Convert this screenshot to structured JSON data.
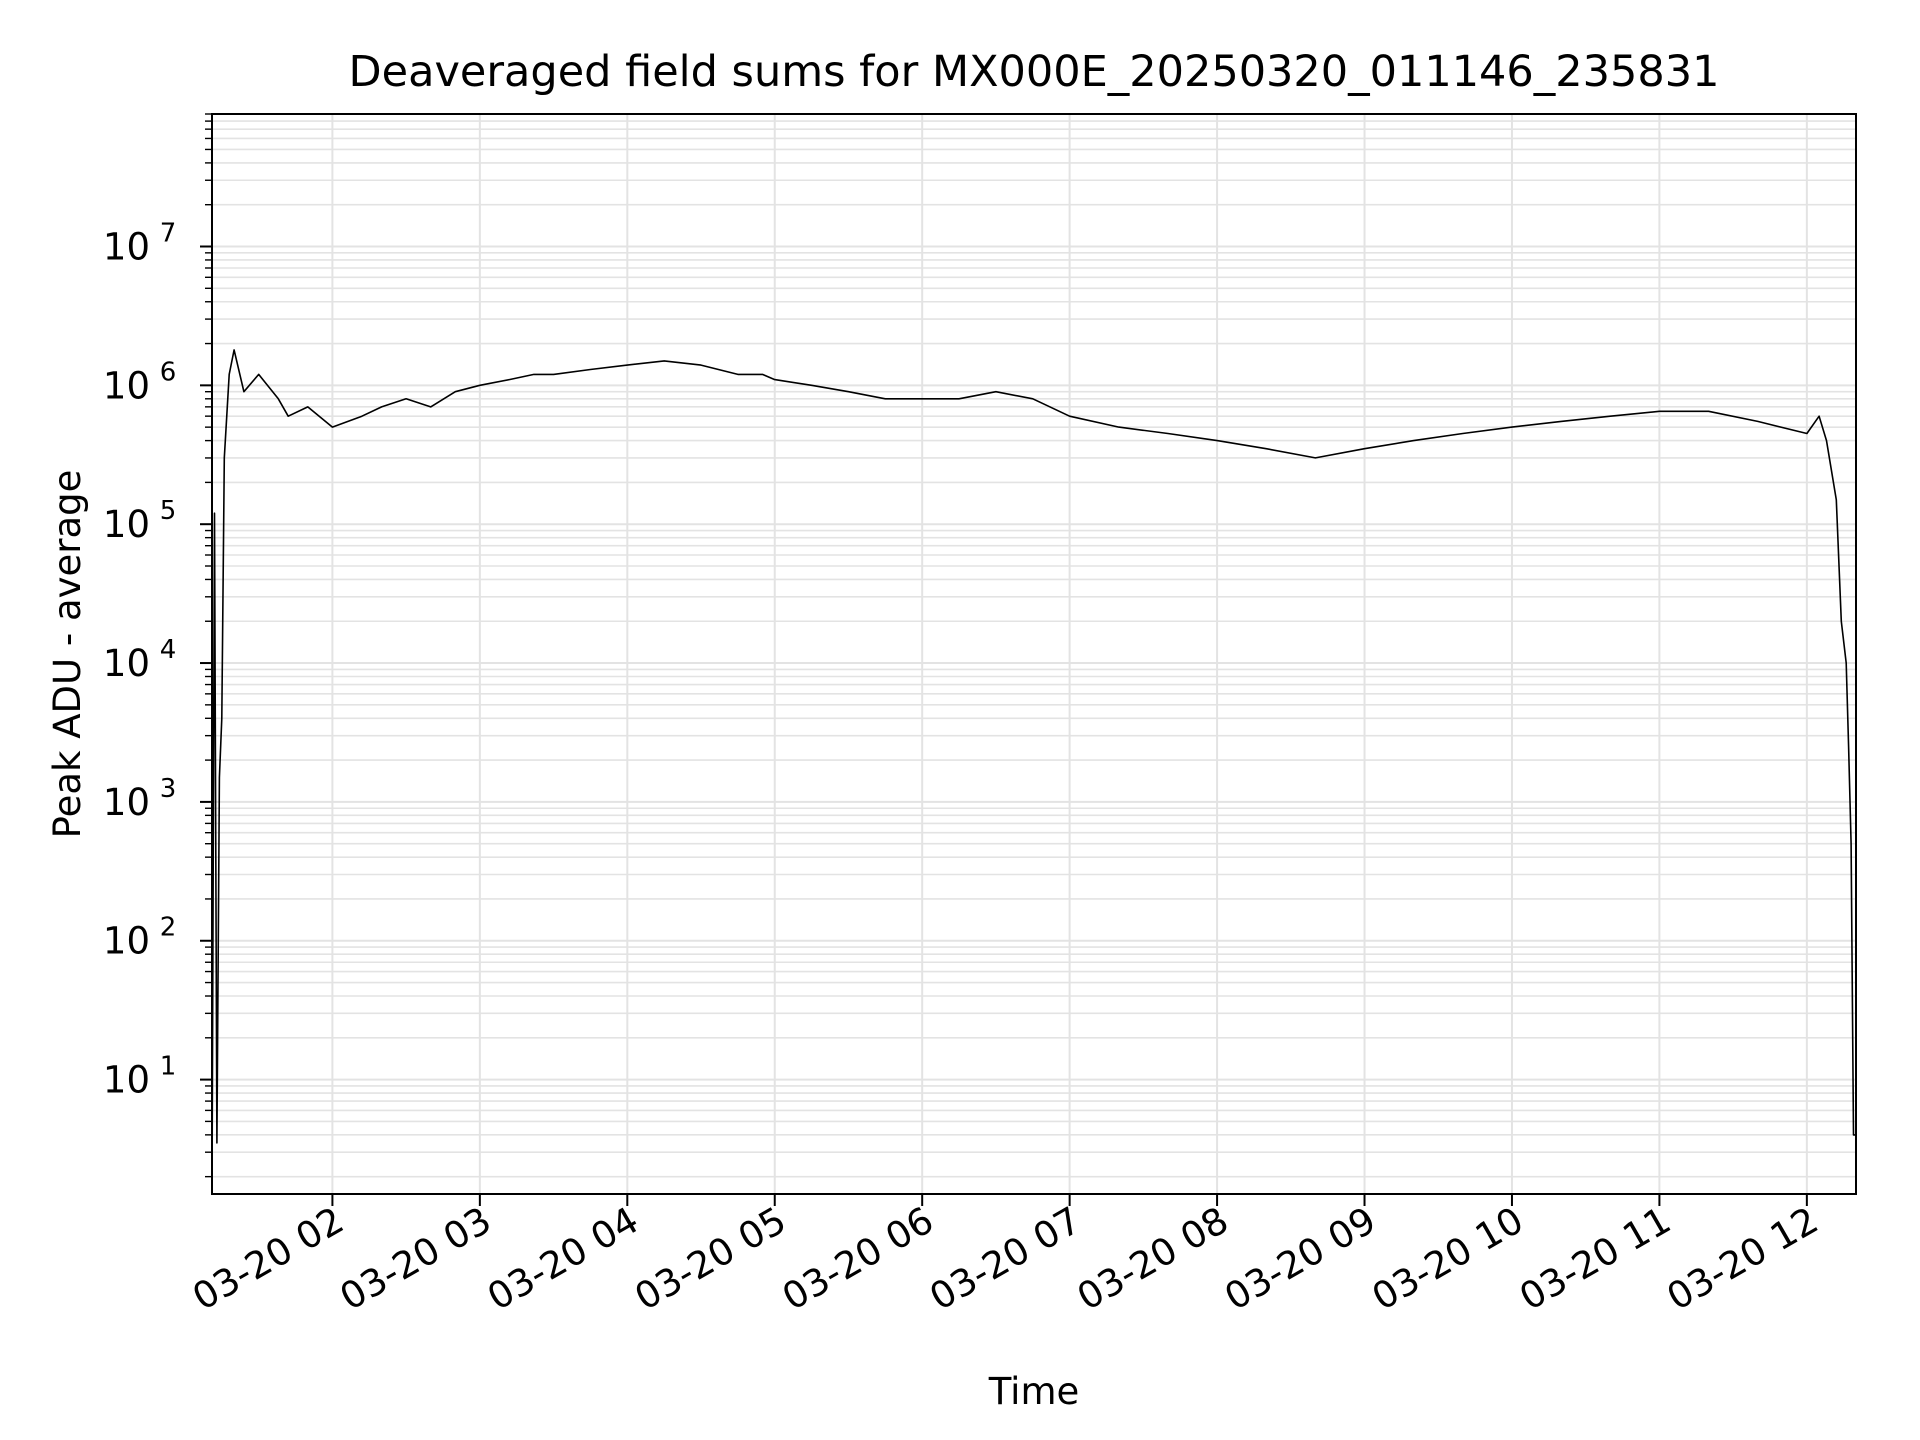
{
  "chart_data": {
    "type": "line",
    "title": "Deaveraged field sums for MX000E_20250320_011146_235831",
    "xlabel": "Time",
    "ylabel": "Peak ADU - average",
    "y_scale": "log",
    "ylim": [
      1.5,
      90000000
    ],
    "xlim": [
      "2025-03-20 01:11",
      "2025-03-20 12:20"
    ],
    "grid": true,
    "line_color": "#000000",
    "x_ticks": [
      {
        "t": "2025-03-20 02:00",
        "label": "03-20 02"
      },
      {
        "t": "2025-03-20 03:00",
        "label": "03-20 03"
      },
      {
        "t": "2025-03-20 04:00",
        "label": "03-20 04"
      },
      {
        "t": "2025-03-20 05:00",
        "label": "03-20 05"
      },
      {
        "t": "2025-03-20 06:00",
        "label": "03-20 06"
      },
      {
        "t": "2025-03-20 07:00",
        "label": "03-20 07"
      },
      {
        "t": "2025-03-20 08:00",
        "label": "03-20 08"
      },
      {
        "t": "2025-03-20 09:00",
        "label": "03-20 09"
      },
      {
        "t": "2025-03-20 10:00",
        "label": "03-20 10"
      },
      {
        "t": "2025-03-20 11:00",
        "label": "03-20 11"
      },
      {
        "t": "2025-03-20 12:00",
        "label": "03-20 12"
      }
    ],
    "y_ticks": [
      {
        "value": 10,
        "base": "10",
        "exp": "1"
      },
      {
        "value": 100,
        "base": "10",
        "exp": "2"
      },
      {
        "value": 1000,
        "base": "10",
        "exp": "3"
      },
      {
        "value": 10000,
        "base": "10",
        "exp": "4"
      },
      {
        "value": 100000,
        "base": "10",
        "exp": "5"
      },
      {
        "value": 1000000,
        "base": "10",
        "exp": "6"
      },
      {
        "value": 10000000,
        "base": "10",
        "exp": "7"
      }
    ],
    "series": [
      {
        "x": [
          "2025-03-20 01:11",
          "2025-03-20 01:12",
          "2025-03-20 01:13",
          "2025-03-20 01:14",
          "2025-03-20 01:15",
          "2025-03-20 01:16",
          "2025-03-20 01:18",
          "2025-03-20 01:20",
          "2025-03-20 01:24",
          "2025-03-20 01:30",
          "2025-03-20 01:38",
          "2025-03-20 01:42",
          "2025-03-20 01:50",
          "2025-03-20 02:00",
          "2025-03-20 02:12",
          "2025-03-20 02:20",
          "2025-03-20 02:30",
          "2025-03-20 02:40",
          "2025-03-20 02:50",
          "2025-03-20 03:00",
          "2025-03-20 03:12",
          "2025-03-20 03:22",
          "2025-03-20 03:30",
          "2025-03-20 03:45",
          "2025-03-20 04:00",
          "2025-03-20 04:15",
          "2025-03-20 04:30",
          "2025-03-20 04:45",
          "2025-03-20 04:55",
          "2025-03-20 05:00",
          "2025-03-20 05:15",
          "2025-03-20 05:30",
          "2025-03-20 05:45",
          "2025-03-20 06:00",
          "2025-03-20 06:15",
          "2025-03-20 06:30",
          "2025-03-20 06:45",
          "2025-03-20 07:00",
          "2025-03-20 07:20",
          "2025-03-20 07:40",
          "2025-03-20 08:00",
          "2025-03-20 08:20",
          "2025-03-20 08:40",
          "2025-03-20 09:00",
          "2025-03-20 09:20",
          "2025-03-20 09:40",
          "2025-03-20 10:00",
          "2025-03-20 10:20",
          "2025-03-20 10:40",
          "2025-03-20 11:00",
          "2025-03-20 11:20",
          "2025-03-20 11:40",
          "2025-03-20 12:00",
          "2025-03-20 12:05",
          "2025-03-20 12:08",
          "2025-03-20 12:12",
          "2025-03-20 12:14",
          "2025-03-20 12:16",
          "2025-03-20 12:17",
          "2025-03-20 12:18",
          "2025-03-20 12:19",
          "2025-03-20 12:20"
        ],
        "y": [
          1.5,
          120000,
          3.5,
          1500,
          4000,
          300000,
          1200000,
          1800000,
          900000,
          1200000,
          800000,
          600000,
          700000,
          500000,
          600000,
          700000,
          800000,
          700000,
          900000,
          1000000,
          1100000,
          1200000,
          1200000,
          1300000,
          1400000,
          1500000,
          1400000,
          1200000,
          1200000,
          1100000,
          1000000,
          900000,
          800000,
          800000,
          800000,
          900000,
          800000,
          600000,
          500000,
          450000,
          400000,
          350000,
          300000,
          350000,
          400000,
          450000,
          500000,
          550000,
          600000,
          650000,
          650000,
          550000,
          450000,
          600000,
          400000,
          150000,
          20000,
          10000,
          2500,
          500,
          4,
          4
        ]
      }
    ]
  }
}
